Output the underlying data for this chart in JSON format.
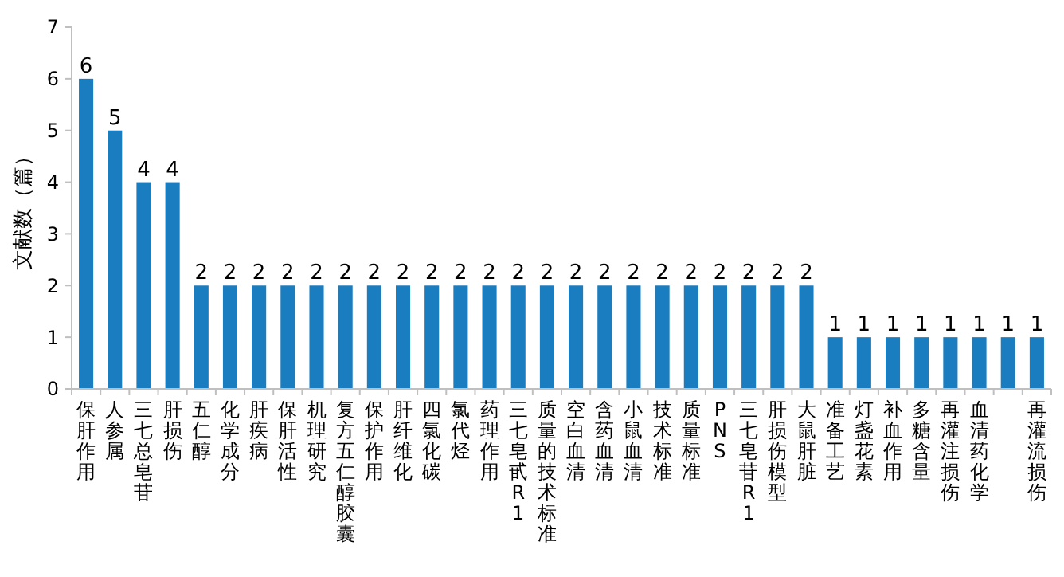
{
  "chart_data": {
    "type": "bar",
    "ylabel": "文献数（篇）",
    "categories": [
      "保肝作用",
      "人参属",
      "三七总皂苷",
      "肝损伤",
      "五仁醇",
      "化学成分",
      "肝疾病",
      "保肝活性",
      "机理研究",
      "复方五仁醇胶囊",
      "保护作用",
      "肝纤维化",
      "四氯化碳",
      "氯代烃",
      "药理作用",
      "三七皂甙R1",
      "质量的技术标准",
      "空白血清",
      "含药血清",
      "小鼠血清",
      "技术标准",
      "质量标准",
      "PNS",
      "三七皂苷R1",
      "肝损伤模型",
      "大鼠肝脏",
      "准备工艺",
      "灯盏花素",
      "补血作用",
      "多糖含量",
      "再灌注损伤",
      "血清药化学",
      null,
      "再灌流损伤"
    ],
    "values": [
      6,
      5,
      4,
      4,
      2,
      2,
      2,
      2,
      2,
      2,
      2,
      2,
      2,
      2,
      2,
      2,
      2,
      2,
      2,
      2,
      2,
      2,
      2,
      2,
      2,
      2,
      1,
      1,
      1,
      1,
      1,
      1,
      1,
      1
    ],
    "color": "#1a7dc0",
    "ylim": [
      0,
      7
    ],
    "yticks": [
      0,
      1,
      2,
      3,
      4,
      5,
      6,
      7
    ],
    "data_labels": true,
    "grid": false
  }
}
